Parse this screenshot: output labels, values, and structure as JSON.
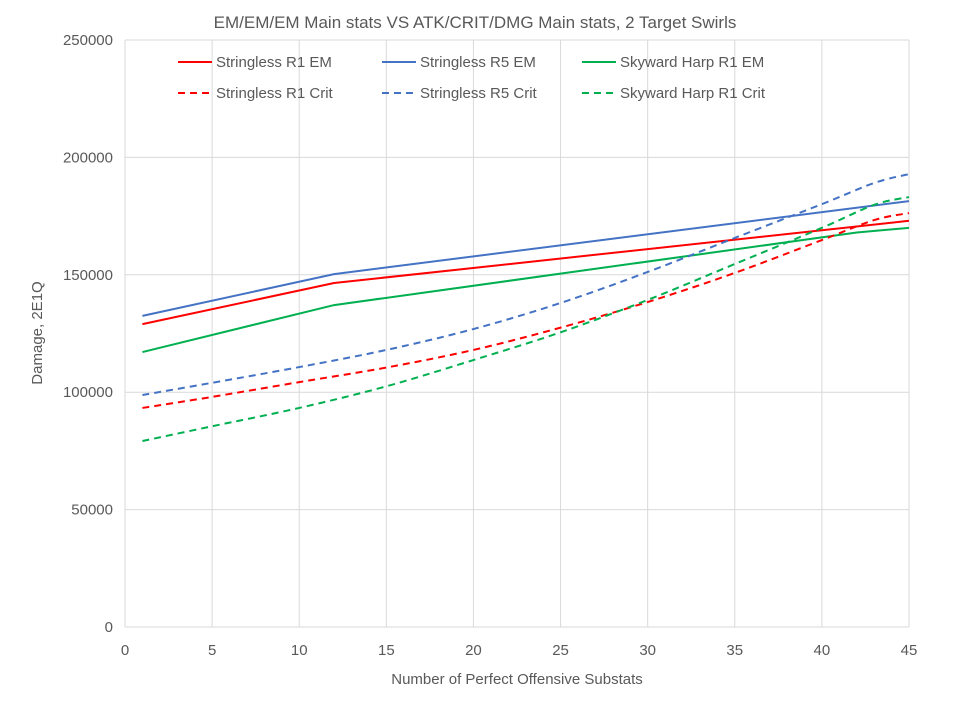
{
  "chart_data": {
    "type": "line",
    "title": "EM/EM/EM Main stats VS ATK/CRIT/DMG Main stats, 2 Target Swirls",
    "xlabel": "Number of Perfect Offensive Substats",
    "ylabel": "Damage, 2E1Q",
    "xlim": [
      0,
      45
    ],
    "ylim": [
      0,
      250000
    ],
    "xticks": [
      "0",
      "5",
      "10",
      "15",
      "20",
      "25",
      "30",
      "35",
      "40",
      "45"
    ],
    "yticks": [
      "0",
      "50000",
      "100000",
      "150000",
      "200000",
      "250000"
    ],
    "grid": true,
    "legend_placement": "top",
    "series": [
      {
        "name": "Stringless R1 EM",
        "color": "#ff0000",
        "dash": false,
        "x": [
          1,
          12,
          45
        ],
        "y": [
          129000,
          146500,
          173000
        ]
      },
      {
        "name": "Stringless R5 EM",
        "color": "#4472c4",
        "dash": false,
        "x": [
          1,
          12,
          45
        ],
        "y": [
          132500,
          150300,
          181400
        ]
      },
      {
        "name": "Skyward Harp R1 EM",
        "color": "#00b050",
        "dash": false,
        "x": [
          1,
          12,
          42,
          45
        ],
        "y": [
          117100,
          137100,
          168000,
          170000
        ]
      },
      {
        "name": "Stringless R1 Crit",
        "color": "#ff0000",
        "dash": true,
        "x": [
          1,
          5,
          10,
          15,
          20,
          25,
          30,
          35,
          40,
          43,
          45
        ],
        "y": [
          93300,
          98000,
          104300,
          110500,
          118000,
          127500,
          138400,
          150800,
          164800,
          173300,
          176300
        ]
      },
      {
        "name": "Stringless R5 Crit",
        "color": "#4472c4",
        "dash": true,
        "x": [
          1,
          5,
          10,
          15,
          20,
          25,
          30,
          35,
          40,
          43,
          45
        ],
        "y": [
          98800,
          104000,
          110700,
          118000,
          126900,
          138000,
          151200,
          165700,
          180100,
          189100,
          192900
        ]
      },
      {
        "name": "Skyward Harp R1 Crit",
        "color": "#00b050",
        "dash": true,
        "x": [
          1,
          5,
          10,
          15,
          20,
          25,
          30,
          35,
          40,
          43,
          45
        ],
        "y": [
          79200,
          85500,
          93300,
          102500,
          113700,
          125500,
          139300,
          154600,
          170000,
          179800,
          183100
        ]
      }
    ]
  }
}
